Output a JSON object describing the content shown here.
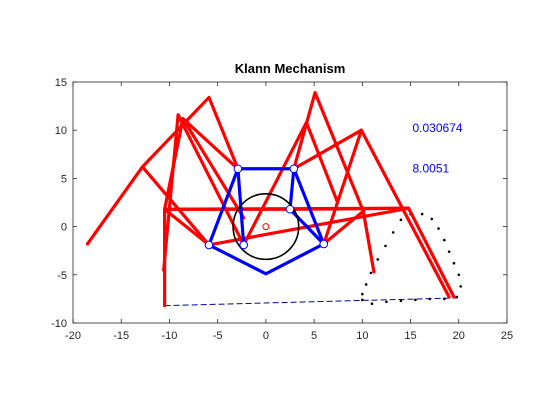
{
  "chart_data": {
    "type": "line",
    "title": "Klann Mechanism",
    "xlabel": "",
    "ylabel": "",
    "xlim": [
      -20,
      25
    ],
    "ylim": [
      -10,
      15
    ],
    "x_ticks": [
      -20,
      -15,
      -10,
      -5,
      0,
      5,
      10,
      15,
      20,
      25
    ],
    "y_ticks": [
      -10,
      -5,
      0,
      5,
      10,
      15
    ],
    "x_tick_labels": [
      "-20",
      "-15",
      "-10",
      "-5",
      "0",
      "5",
      "10",
      "15",
      "20",
      "25"
    ],
    "y_tick_labels": [
      "-10",
      "-5",
      "0",
      "5",
      "10",
      "15"
    ],
    "grid": false,
    "box": true,
    "colors": {
      "legs": "#ff0000",
      "frame": "#0000ff",
      "crank_circle": "#000000",
      "trajectory": "#000000",
      "annotation": "#0000ff",
      "ground_line": "#0000aa"
    },
    "annotations": [
      {
        "text": "0.030674",
        "x": 15.2,
        "y": 9.8
      },
      {
        "text": "8.0051",
        "x": 15.2,
        "y": 5.6
      }
    ],
    "crank": {
      "center": [
        0,
        0
      ],
      "radius": 3.4
    },
    "frame_polygon": [
      [
        -2.9,
        6.0
      ],
      [
        2.9,
        6.0
      ],
      [
        6.0,
        -1.8
      ],
      [
        0,
        -4.9
      ],
      [
        -5.9,
        -1.9
      ],
      [
        -2.3,
        -1.9
      ],
      [
        2.5,
        1.8
      ]
    ],
    "joints": [
      [
        -2.9,
        6.0
      ],
      [
        2.9,
        6.0
      ],
      [
        6.0,
        -1.8
      ],
      [
        -5.9,
        -1.9
      ],
      [
        -2.3,
        -1.9
      ],
      [
        2.5,
        1.8
      ],
      [
        0,
        0
      ]
    ],
    "legs": [
      {
        "points": [
          [
            -18.5,
            -1.8
          ],
          [
            -12.8,
            6.2
          ],
          [
            -5.9,
            13.4
          ],
          [
            -2.9,
            6.0
          ]
        ]
      },
      {
        "points": [
          [
            -12.8,
            6.2
          ],
          [
            -5.9,
            -1.9
          ]
        ]
      },
      {
        "points": [
          [
            -10.5,
            -8.2
          ],
          [
            -10.5,
            1.8
          ],
          [
            -8.6,
            11.2
          ],
          [
            -2.9,
            6.0
          ]
        ]
      },
      {
        "points": [
          [
            -10.5,
            1.8
          ],
          [
            -5.9,
            -1.9
          ]
        ]
      },
      {
        "points": [
          [
            -10.6,
            -4.5
          ],
          [
            -9.1,
            11.6
          ],
          [
            -2.3,
            -1.9
          ]
        ]
      },
      {
        "points": [
          [
            -10.5,
            1.8
          ],
          [
            2.5,
            1.8
          ]
        ]
      },
      {
        "points": [
          [
            -8.6,
            11.2
          ],
          [
            -2.3,
            0.9
          ]
        ]
      },
      {
        "points": [
          [
            19.5,
            -7.3
          ],
          [
            14.8,
            1.9
          ],
          [
            2.5,
            1.8
          ]
        ]
      },
      {
        "points": [
          [
            11.2,
            -4.7
          ],
          [
            10.1,
            1.6
          ],
          [
            5.1,
            13.9
          ],
          [
            2.9,
            6.0
          ]
        ]
      },
      {
        "points": [
          [
            10.1,
            1.6
          ],
          [
            6.0,
            -1.8
          ]
        ]
      },
      {
        "points": [
          [
            19.0,
            -7.3
          ],
          [
            9.9,
            10.0
          ],
          [
            2.9,
            6.0
          ]
        ]
      },
      {
        "points": [
          [
            9.9,
            10.0
          ],
          [
            6.0,
            -1.8
          ]
        ]
      },
      {
        "points": [
          [
            7.4,
            2.6
          ],
          [
            4.2,
            10.8
          ],
          [
            -2.3,
            -1.9
          ]
        ]
      },
      {
        "points": [
          [
            -5.9,
            -1.9
          ],
          [
            14.8,
            1.9
          ]
        ]
      },
      {
        "points": [
          [
            -10.5,
            1.8
          ],
          [
            14.8,
            1.9
          ]
        ]
      }
    ],
    "trajectory": [
      [
        10.0,
        -7.6
      ],
      [
        11.0,
        -8.0
      ],
      [
        12.5,
        -7.8
      ],
      [
        14.0,
        -7.7
      ],
      [
        15.5,
        -7.6
      ],
      [
        17.0,
        -7.5
      ],
      [
        18.5,
        -7.5
      ],
      [
        19.8,
        -7.3
      ],
      [
        20.2,
        -6.2
      ],
      [
        20.0,
        -5.0
      ],
      [
        19.5,
        -3.8
      ],
      [
        19.0,
        -2.6
      ],
      [
        18.5,
        -1.4
      ],
      [
        17.9,
        -0.2
      ],
      [
        17.2,
        0.8
      ],
      [
        16.2,
        1.3
      ],
      [
        15.0,
        1.3
      ],
      [
        14.0,
        0.7
      ],
      [
        13.2,
        -0.6
      ],
      [
        12.4,
        -2.0
      ],
      [
        11.6,
        -3.4
      ],
      [
        10.9,
        -4.8
      ],
      [
        10.4,
        -6.0
      ],
      [
        10.0,
        -7.0
      ],
      [
        10.0,
        -7.6
      ]
    ],
    "ground_line": [
      [
        -10.5,
        -8.2
      ],
      [
        19.8,
        -7.4
      ]
    ]
  }
}
